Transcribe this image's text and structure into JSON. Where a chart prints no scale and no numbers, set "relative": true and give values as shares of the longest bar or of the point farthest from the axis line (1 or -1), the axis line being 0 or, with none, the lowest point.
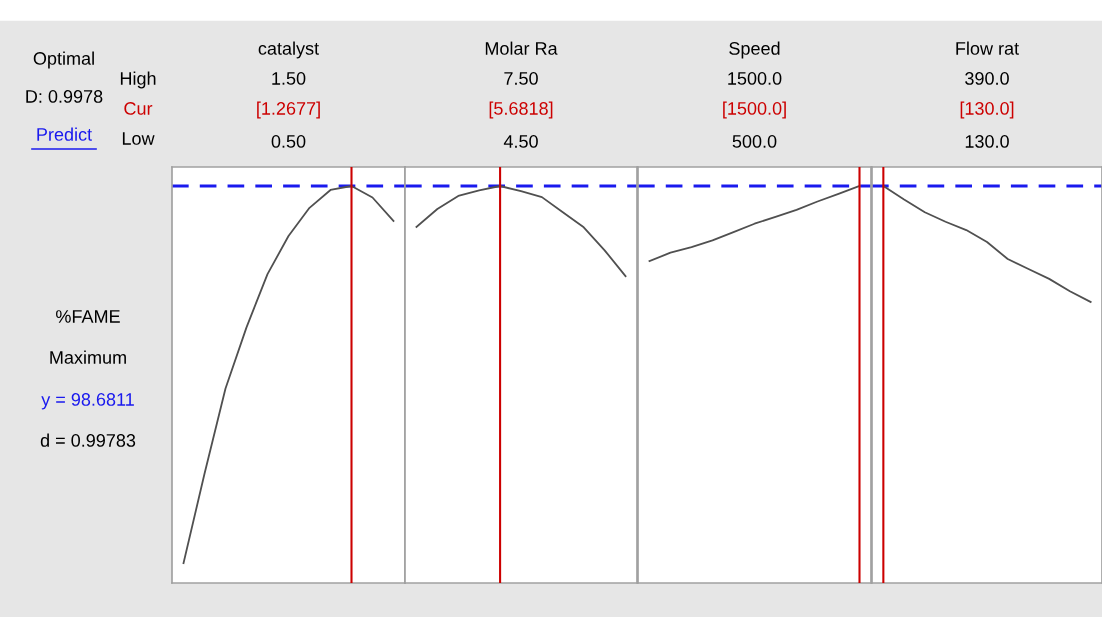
{
  "chart_data": [
    {
      "type": "line",
      "title": "catalyst",
      "relative": true,
      "tick_labels": false,
      "color": "#505050",
      "annotations": [
        "1.50",
        "[1.2677]",
        "0.50"
      ],
      "categories": [
        null,
        null,
        null,
        null,
        null,
        null,
        null,
        null,
        null,
        null,
        null
      ],
      "values": [
        0.05,
        0.275,
        0.49,
        0.644,
        0.778,
        0.874,
        0.945,
        0.99,
        1,
        0.971,
        0.912
      ],
      "ref_lines": [
        {
          "axis": "y",
          "value": 1,
          "color": "#1a1aee",
          "line_style": "dashed"
        }
      ]
    },
    {
      "type": "line",
      "title": "Molar Ra",
      "relative": true,
      "tick_labels": false,
      "color": "#505050",
      "annotations": [
        "7.50",
        "[5.6818]",
        "4.50"
      ],
      "categories": [
        null,
        null,
        null,
        null,
        null,
        null,
        null,
        null,
        null,
        null,
        null
      ],
      "values": [
        0.897,
        0.942,
        0.975,
        0.989,
        1,
        0.987,
        0.972,
        0.934,
        0.896,
        0.838,
        0.773
      ],
      "ref_lines": [
        {
          "axis": "y",
          "value": 1,
          "color": "#1a1aee",
          "line_style": "dashed"
        }
      ]
    },
    {
      "type": "line",
      "title": "Speed",
      "relative": true,
      "tick_labels": false,
      "color": "#505050",
      "annotations": [
        "1500.0",
        "[1500.0]",
        "500.0"
      ],
      "categories": [
        null,
        null,
        null,
        null,
        null,
        null,
        null,
        null,
        null,
        null,
        null
      ],
      "values": [
        0.811,
        0.832,
        0.846,
        0.863,
        0.884,
        0.905,
        0.922,
        0.94,
        0.961,
        0.98,
        1
      ],
      "ref_lines": [
        {
          "axis": "y",
          "value": 1,
          "color": "#1a1aee",
          "line_style": "dashed"
        }
      ]
    },
    {
      "type": "line",
      "title": "Flow rat",
      "relative": true,
      "tick_labels": false,
      "color": "#505050",
      "annotations": [
        "390.0",
        "[130.0]",
        "130.0"
      ],
      "categories": [
        null,
        null,
        null,
        null,
        null,
        null,
        null,
        null,
        null,
        null,
        null
      ],
      "values": [
        1,
        0.966,
        0.934,
        0.91,
        0.889,
        0.859,
        0.816,
        0.791,
        0.766,
        0.735,
        0.708
      ],
      "ref_lines": [
        {
          "axis": "y",
          "value": 1,
          "color": "#1a1aee",
          "line_style": "dashed"
        }
      ]
    },
    {
      "type": "other",
      "annotations": [
        "Optimal",
        "D: 0.9978",
        "Predict",
        "High",
        "Cur",
        "Low",
        "%FAME",
        "Maximum",
        "y = 98.6811",
        "d = 0.99783"
      ]
    }
  ]
}
